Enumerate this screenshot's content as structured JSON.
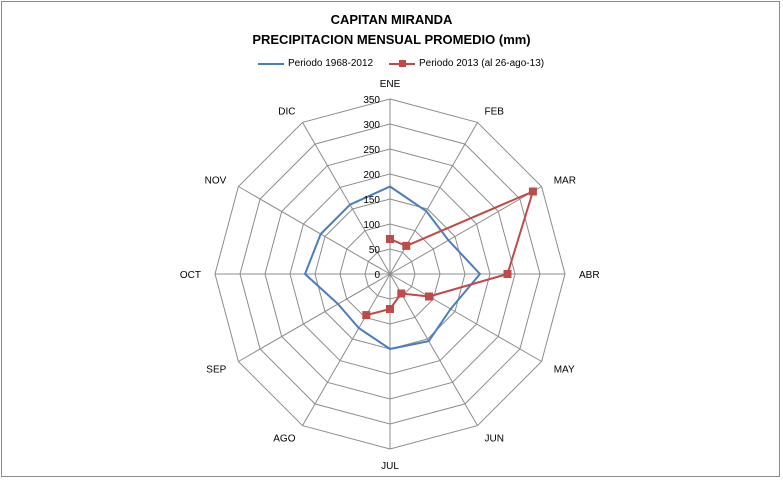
{
  "chart_data": {
    "type": "radar",
    "title": "CAPITAN MIRANDA",
    "subtitle": "PRECIPITACION MENSUAL PROMEDIO  (mm)",
    "categories": [
      "ENE",
      "FEB",
      "MAR",
      "ABR",
      "MAY",
      "JUN",
      "JUL",
      "AGO",
      "SEP",
      "OCT",
      "NOV",
      "DIC"
    ],
    "radial_ticks": [
      "0",
      "50",
      "100",
      "150",
      "200",
      "250",
      "300",
      "350"
    ],
    "rlim": [
      0,
      350
    ],
    "grid": true,
    "legend_position": "top",
    "series": [
      {
        "name": "Periodo 1968-2012",
        "color": "#4a7ebb",
        "marker": "none",
        "values": [
          175,
          145,
          135,
          180,
          140,
          155,
          150,
          125,
          120,
          170,
          160,
          160
        ]
      },
      {
        "name": "Periodo 2013 (al 26-ago-13)",
        "color": "#be4b48",
        "marker": "square",
        "values": [
          70,
          65,
          330,
          235,
          90,
          45,
          70,
          95,
          null,
          null,
          null,
          null
        ]
      }
    ]
  }
}
